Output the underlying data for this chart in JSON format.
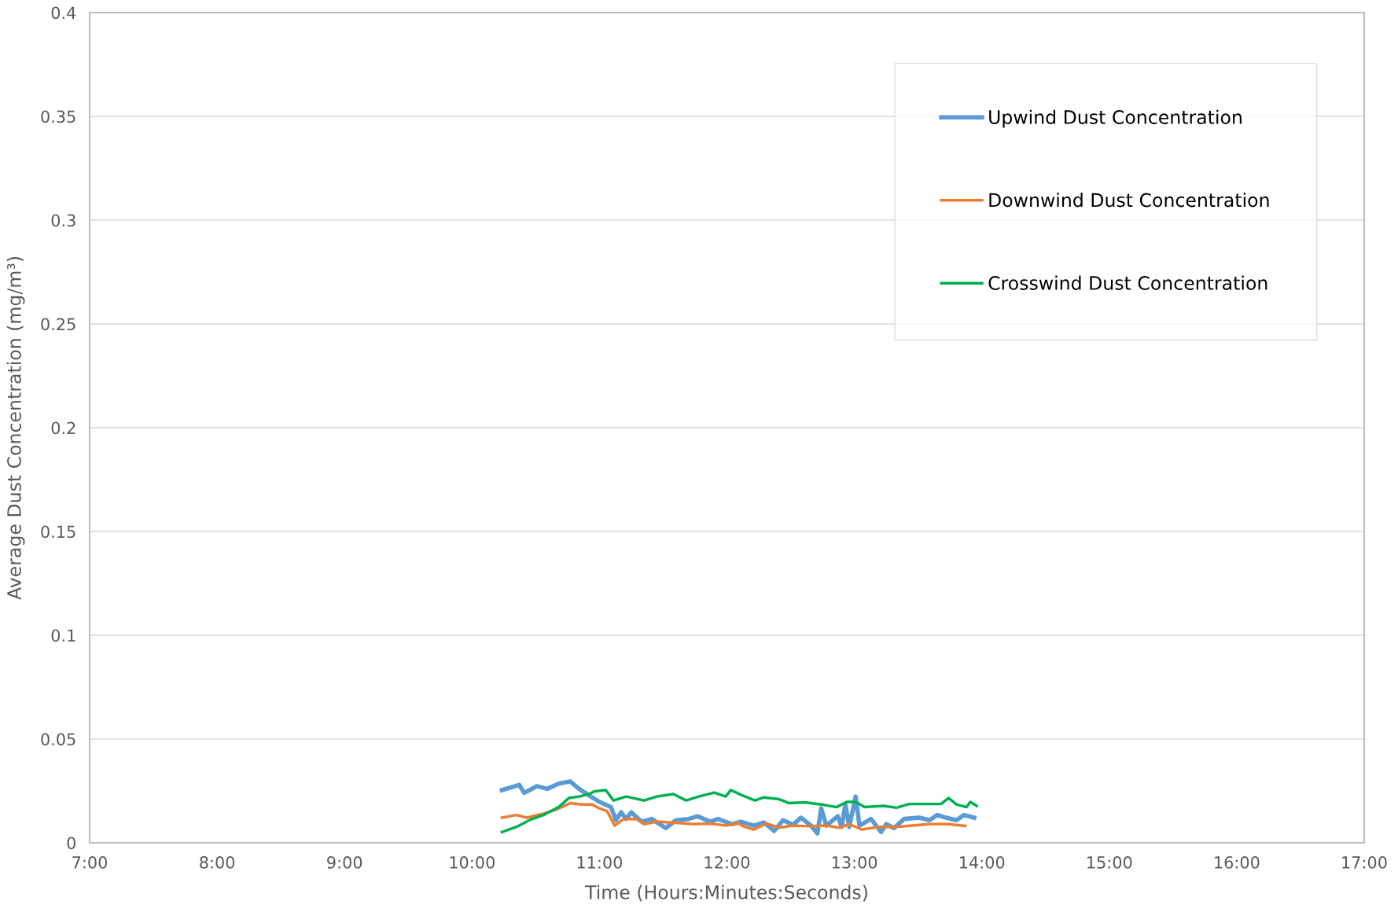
{
  "chart_data": {
    "type": "line",
    "xlabel": "Time (Hours:Minutes:Seconds)",
    "ylabel": "Average Dust Concentration (mg/m³)",
    "xlim": [
      7,
      17
    ],
    "xticks": [
      {
        "value": 7,
        "label": "7:00"
      },
      {
        "value": 8,
        "label": "8:00"
      },
      {
        "value": 9,
        "label": "9:00"
      },
      {
        "value": 10,
        "label": "10:00"
      },
      {
        "value": 11,
        "label": "11:00"
      },
      {
        "value": 12,
        "label": "12:00"
      },
      {
        "value": 13,
        "label": "13:00"
      },
      {
        "value": 14,
        "label": "14:00"
      },
      {
        "value": 15,
        "label": "15:00"
      },
      {
        "value": 16,
        "label": "16:00"
      },
      {
        "value": 17,
        "label": "17:00"
      }
    ],
    "ylim": [
      0,
      0.4
    ],
    "yticks": [
      0,
      0.05,
      0.1,
      0.15,
      0.2,
      0.25,
      0.3,
      0.35,
      0.4
    ],
    "grid": "y",
    "legend": "top right",
    "marker": "none",
    "line_style": "solid",
    "series": [
      {
        "name": "Upwind Dust Concentration",
        "color": "#5b9bd5",
        "x": [
          10.235,
          10.37,
          10.41,
          10.51,
          10.59,
          10.68,
          10.77,
          10.84,
          10.92,
          11.0,
          11.09,
          11.13,
          11.17,
          11.21,
          11.25,
          11.33,
          11.41,
          11.52,
          11.6,
          11.7,
          11.77,
          11.87,
          11.93,
          12.04,
          12.11,
          12.21,
          12.29,
          12.37,
          12.44,
          12.52,
          12.58,
          12.66,
          12.71,
          12.74,
          12.78,
          12.87,
          12.9,
          12.93,
          12.96,
          13.01,
          13.04,
          13.13,
          13.21,
          13.25,
          13.31,
          13.39,
          13.51,
          13.59,
          13.65,
          13.72,
          13.8,
          13.86,
          13.94
        ],
        "values": [
          0.0254,
          0.0279,
          0.0241,
          0.0273,
          0.026,
          0.0285,
          0.0296,
          0.026,
          0.0228,
          0.0197,
          0.0172,
          0.0109,
          0.0147,
          0.0115,
          0.0147,
          0.0102,
          0.0115,
          0.0071,
          0.0109,
          0.0115,
          0.0128,
          0.0102,
          0.0115,
          0.009,
          0.0102,
          0.0083,
          0.0098,
          0.0057,
          0.0109,
          0.0087,
          0.0121,
          0.0083,
          0.0045,
          0.0166,
          0.0083,
          0.0128,
          0.0077,
          0.0185,
          0.0077,
          0.0223,
          0.0083,
          0.0115,
          0.0052,
          0.009,
          0.0071,
          0.0115,
          0.0121,
          0.0109,
          0.0134,
          0.0121,
          0.0109,
          0.0134,
          0.0121
        ]
      },
      {
        "name": "Downwind Dust Concentration",
        "color": "#ed7d31",
        "x": [
          10.235,
          10.35,
          10.43,
          10.56,
          10.66,
          10.77,
          10.86,
          10.94,
          11.0,
          11.06,
          11.12,
          11.19,
          11.29,
          11.35,
          11.45,
          11.62,
          11.74,
          11.87,
          11.99,
          12.09,
          12.14,
          12.21,
          12.31,
          12.41,
          12.52,
          12.64,
          12.78,
          12.88,
          12.96,
          13.06,
          13.19,
          13.33,
          13.46,
          13.58,
          13.74,
          13.87
        ],
        "values": [
          0.0121,
          0.0134,
          0.0121,
          0.014,
          0.016,
          0.0191,
          0.0185,
          0.0185,
          0.0166,
          0.0153,
          0.0083,
          0.0115,
          0.0115,
          0.009,
          0.0102,
          0.0096,
          0.009,
          0.0093,
          0.0083,
          0.0093,
          0.0077,
          0.0064,
          0.0093,
          0.0073,
          0.0083,
          0.008,
          0.0083,
          0.0073,
          0.009,
          0.0064,
          0.0077,
          0.0077,
          0.0083,
          0.009,
          0.009,
          0.0081
        ]
      },
      {
        "name": "Crosswind Dust Concentration",
        "color": "#00b050",
        "x": [
          10.235,
          10.35,
          10.45,
          10.56,
          10.68,
          10.76,
          10.84,
          10.92,
          10.96,
          11.05,
          11.11,
          11.21,
          11.35,
          11.45,
          11.58,
          11.68,
          11.78,
          11.9,
          11.99,
          12.03,
          12.12,
          12.22,
          12.29,
          12.41,
          12.49,
          12.61,
          12.74,
          12.86,
          12.94,
          13.01,
          13.08,
          13.23,
          13.33,
          13.43,
          13.58,
          13.68,
          13.74,
          13.8,
          13.88,
          13.91,
          13.96
        ],
        "values": [
          0.0052,
          0.0077,
          0.0109,
          0.0134,
          0.0172,
          0.0216,
          0.0223,
          0.0235,
          0.0248,
          0.0254,
          0.0204,
          0.0223,
          0.0204,
          0.0223,
          0.0235,
          0.0204,
          0.0223,
          0.0242,
          0.0223,
          0.0254,
          0.0229,
          0.0204,
          0.0219,
          0.021,
          0.0191,
          0.0195,
          0.0185,
          0.0172,
          0.0197,
          0.0197,
          0.0172,
          0.0178,
          0.0169,
          0.0187,
          0.0187,
          0.0187,
          0.0216,
          0.0185,
          0.0172,
          0.0197,
          0.0178
        ]
      }
    ]
  }
}
